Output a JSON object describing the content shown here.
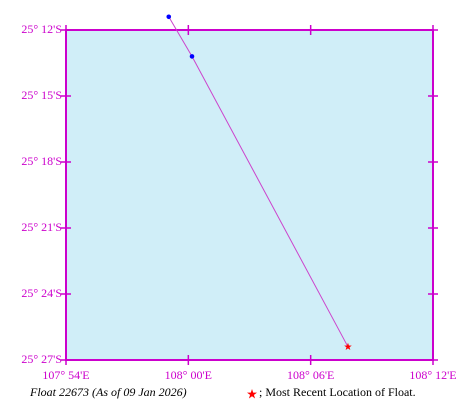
{
  "chart_data": {
    "type": "line",
    "title": "Float 22673 (As of 09 Jan 2026)",
    "legend_label": "; Most Recent Location of Float.",
    "x": [
      107.984,
      108.003,
      108.1305
    ],
    "values": [
      -25.19,
      -25.22,
      -25.44
    ],
    "line_color": "#cc44cc",
    "point_color": "#0000ff",
    "latest_color": "#ff0000",
    "background": "#d0eef8",
    "axis_color": "#cc00cc",
    "xlim": [
      107.9,
      108.2
    ],
    "xticks": [
      {
        "value": 107.9,
        "label": "107° 54'E"
      },
      {
        "value": 108.0,
        "label": "108° 00'E"
      },
      {
        "value": 108.1,
        "label": "108° 06'E"
      },
      {
        "value": 108.2,
        "label": "108° 12'E"
      }
    ],
    "ylim": [
      -25.45,
      -25.2
    ],
    "yticks": [
      {
        "value": -25.2,
        "label": "25° 12'S"
      },
      {
        "value": -25.25,
        "label": "25° 15'S"
      },
      {
        "value": -25.3,
        "label": "25° 18'S"
      },
      {
        "value": -25.35,
        "label": "25° 21'S"
      },
      {
        "value": -25.4,
        "label": "25° 24'S"
      },
      {
        "value": -25.45,
        "label": "25° 27'S"
      }
    ]
  }
}
